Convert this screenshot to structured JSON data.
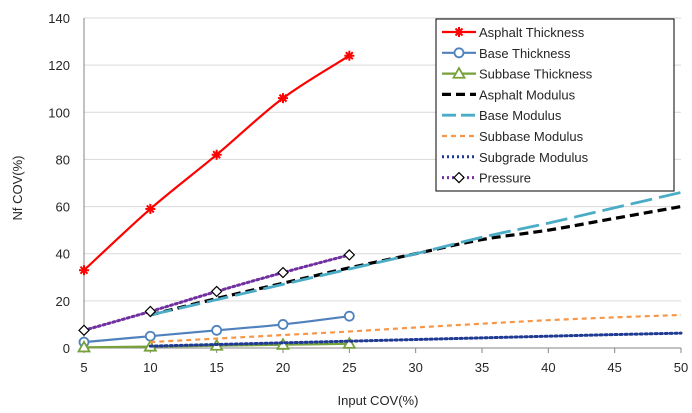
{
  "chart_data": {
    "type": "line",
    "title": "",
    "xlabel": "Input COV(%)",
    "ylabel": "Nf  COV(%)",
    "xlim": [
      5,
      50
    ],
    "ylim": [
      0,
      140
    ],
    "xticks": [
      5,
      10,
      15,
      20,
      25,
      30,
      35,
      40,
      45,
      50
    ],
    "yticks": [
      0,
      20,
      40,
      60,
      80,
      100,
      120,
      140
    ],
    "grid": "horizontal",
    "legend_position": "top-right",
    "series": [
      {
        "name": "Asphalt Thickness",
        "color": "#ff0000",
        "style": "solid",
        "marker": "asterisk",
        "x": [
          5,
          10,
          15,
          20,
          25
        ],
        "y": [
          33,
          59,
          82,
          106,
          124
        ]
      },
      {
        "name": "Base Thickness",
        "color": "#4f81bd",
        "style": "solid",
        "marker": "circle",
        "x": [
          5,
          10,
          15,
          20,
          25
        ],
        "y": [
          2.5,
          5,
          7.5,
          10,
          13.5
        ]
      },
      {
        "name": "Subbase Thickness",
        "color": "#77a23b",
        "style": "solid",
        "marker": "triangle",
        "x": [
          5,
          10,
          15,
          20,
          25
        ],
        "y": [
          0.3,
          0.6,
          1,
          1.4,
          1.8
        ]
      },
      {
        "name": "Asphalt Modulus",
        "color": "#000000",
        "style": "dash",
        "marker": "none",
        "x": [
          10,
          15,
          20,
          25,
          30,
          35,
          40,
          45,
          50
        ],
        "y": [
          14,
          21,
          27.5,
          34,
          40,
          46,
          50,
          55,
          60
        ]
      },
      {
        "name": "Base Modulus",
        "color": "#4bacc6",
        "style": "longdash",
        "marker": "none",
        "x": [
          10,
          15,
          20,
          25,
          30,
          35,
          40,
          45,
          50
        ],
        "y": [
          14,
          20.5,
          27,
          33.5,
          40,
          47,
          53,
          59.5,
          66
        ]
      },
      {
        "name": "Subbase Modulus",
        "color": "#f79646",
        "style": "shortdash",
        "marker": "none",
        "x": [
          10,
          15,
          20,
          25,
          30,
          35,
          40,
          45,
          50
        ],
        "y": [
          2.5,
          4,
          5.5,
          7,
          8.7,
          10.3,
          11.8,
          13,
          14
        ]
      },
      {
        "name": "Subgrade Modulus",
        "color": "#1f3a93",
        "style": "dot",
        "marker": "none",
        "x": [
          10,
          15,
          20,
          25,
          30,
          35,
          40,
          45,
          50
        ],
        "y": [
          0.8,
          1.5,
          2.2,
          2.9,
          3.6,
          4.3,
          5,
          5.7,
          6.3
        ]
      },
      {
        "name": "Pressure",
        "color": "#7030a0",
        "style": "dot",
        "marker": "diamond",
        "x": [
          5,
          10,
          15,
          20,
          25
        ],
        "y": [
          7.5,
          15.5,
          24,
          32,
          39.5
        ]
      }
    ]
  }
}
